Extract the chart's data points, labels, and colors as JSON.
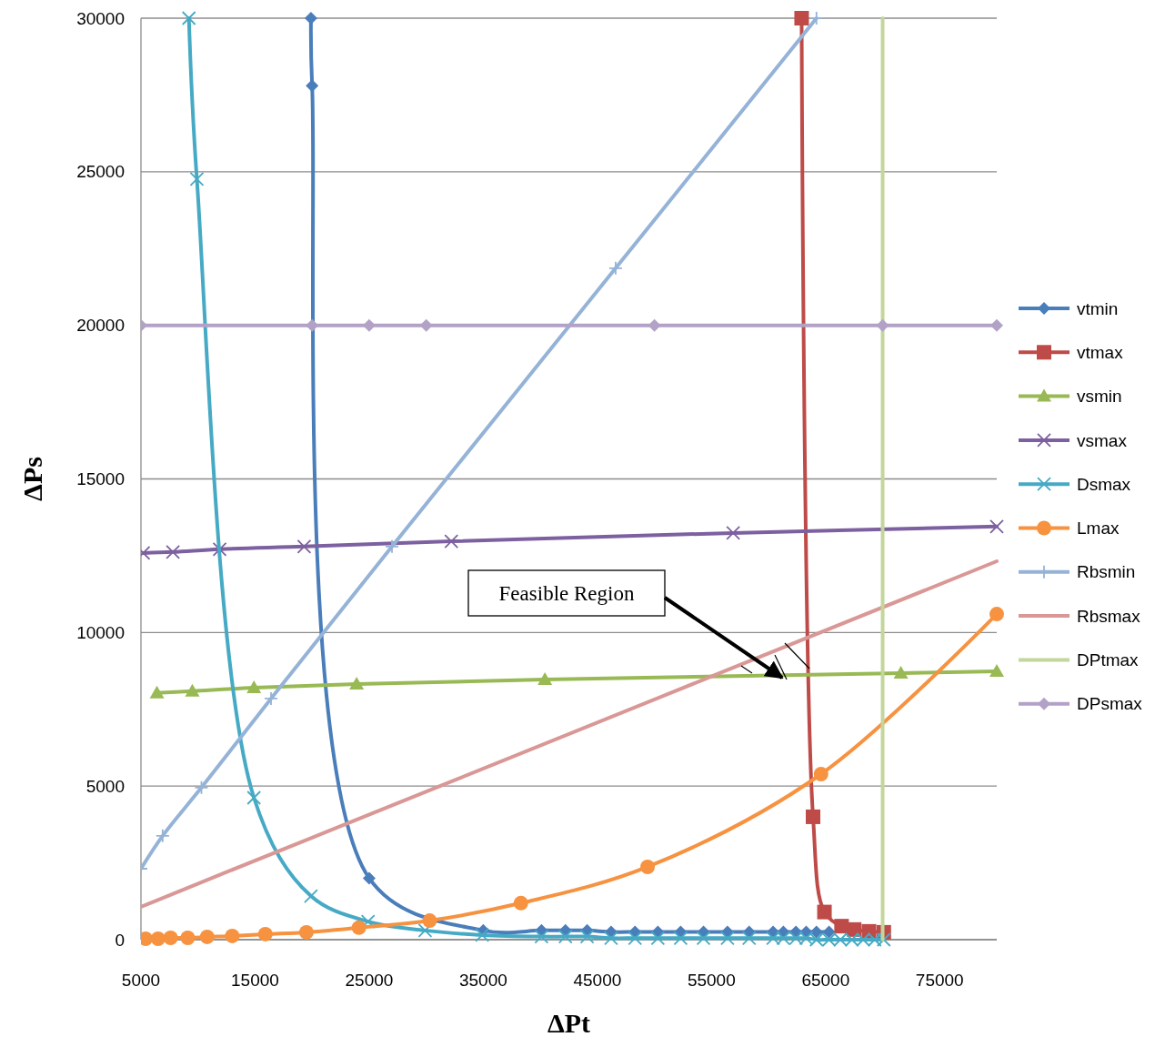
{
  "chart_data": {
    "type": "line",
    "xlabel": "ΔPt",
    "ylabel": "ΔPs",
    "xlim": [
      5000,
      80000
    ],
    "ylim": [
      0,
      30000
    ],
    "xticks": [
      5000,
      15000,
      25000,
      35000,
      45000,
      55000,
      65000,
      75000
    ],
    "yticks": [
      0,
      5000,
      10000,
      15000,
      20000,
      25000,
      30000
    ],
    "grid": "y",
    "legend": "right",
    "line_style": "solid",
    "annotations": [
      "Feasible Region"
    ],
    "series": [
      {
        "name": "vtmin",
        "color": "#4a7ebb",
        "marker": "diamond",
        "x": [
          19900,
          20000,
          25000,
          35000,
          40100,
          42200,
          44100,
          46200,
          48300,
          50300,
          52300,
          54300,
          56400,
          58300,
          60400,
          61300,
          62400,
          63300,
          64200,
          65300
        ],
        "values": [
          30000,
          27800,
          2000,
          300,
          300,
          300,
          300,
          250,
          250,
          250,
          250,
          250,
          250,
          250,
          250,
          250,
          250,
          250,
          250,
          250
        ]
      },
      {
        "name": "vtmax",
        "color": "#be4b48",
        "marker": "square",
        "x": [
          62900,
          63900,
          64900,
          66400,
          67500,
          68800,
          70100
        ],
        "values": [
          30000,
          4000,
          900,
          440,
          330,
          270,
          240
        ]
      },
      {
        "name": "vsmin",
        "color": "#98b954",
        "marker": "triangle",
        "x": [
          6400,
          9500,
          14900,
          23900,
          40400,
          71600,
          80000
        ],
        "values": [
          8030,
          8090,
          8200,
          8320,
          8470,
          8680,
          8740
        ]
      },
      {
        "name": "vsmax",
        "color": "#7d60a0",
        "marker": "cross",
        "x": [
          5200,
          7800,
          11900,
          19300,
          32200,
          56900,
          80000
        ],
        "values": [
          12590,
          12620,
          12710,
          12800,
          12970,
          13240,
          13450
        ]
      },
      {
        "name": "Dsmax",
        "color": "#46aac5",
        "marker": "cross",
        "x": [
          9200,
          9900,
          14900,
          19900,
          24900,
          29900,
          34900,
          40100,
          42200,
          44100,
          46200,
          48300,
          50300,
          52300,
          54300,
          56400,
          58300,
          60400,
          61300,
          62400,
          63300,
          64200,
          65300,
          66300,
          67300,
          68300,
          69300,
          70100
        ],
        "values": [
          30000,
          24760,
          4620,
          1420,
          590,
          300,
          150,
          100,
          100,
          100,
          50,
          50,
          50,
          50,
          50,
          50,
          50,
          50,
          50,
          50,
          50,
          0,
          0,
          0,
          0,
          0,
          0,
          0
        ]
      },
      {
        "name": "Lmax",
        "color": "#f69240",
        "marker": "circle",
        "x": [
          5400,
          6500,
          7600,
          9100,
          10800,
          13000,
          15900,
          19500,
          24100,
          30300,
          38300,
          49400,
          64600,
          80000
        ],
        "values": [
          30,
          30,
          60,
          60,
          90,
          120,
          180,
          240,
          390,
          620,
          1190,
          2370,
          5390,
          10600
        ]
      },
      {
        "name": "Rbsmin",
        "color": "#95b3d7",
        "marker": "plus",
        "x": [
          5000,
          6900,
          10300,
          16400,
          27000,
          46600,
          64200
        ],
        "values": [
          2310,
          3380,
          4950,
          7850,
          12800,
          21860,
          30000
        ]
      },
      {
        "name": "Rbsmax",
        "color": "#d99795",
        "marker": "none",
        "x": [
          5000,
          6000,
          8600,
          12700,
          20000,
          32000,
          80000
        ],
        "values": [
          1070,
          1220,
          1610,
          2230,
          3320,
          5120,
          12320
        ]
      },
      {
        "name": "DPtmax",
        "color": "#c3d69b",
        "marker": "none",
        "x": [
          70000,
          70000,
          70000,
          70000,
          70000,
          70000,
          70000
        ],
        "values": [
          0,
          5000,
          10000,
          15000,
          20000,
          25000,
          30000
        ]
      },
      {
        "name": "DPsmax",
        "color": "#b3a2c7",
        "marker": "diamond",
        "x": [
          5000,
          20000,
          25000,
          30000,
          50000,
          70000,
          80000
        ],
        "values": [
          20000,
          20000,
          20000,
          20000,
          20000,
          20000,
          20000
        ]
      }
    ]
  }
}
